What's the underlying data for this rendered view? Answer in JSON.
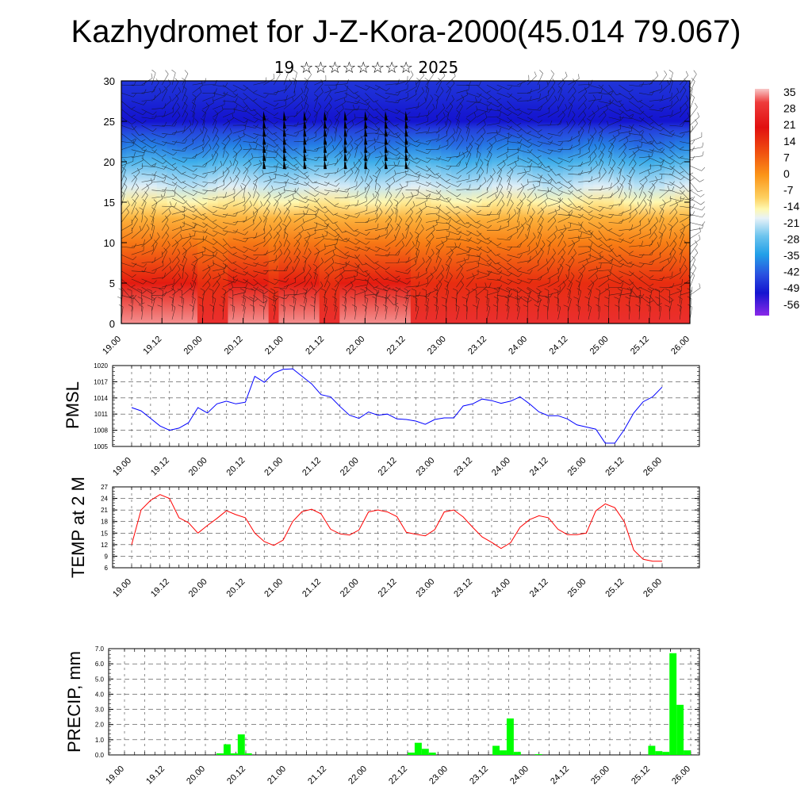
{
  "title": "Kazhydromet for J-Z-Kora-2000(45.014 79.067)",
  "subtitle": "19 ☆☆☆☆☆☆☆☆ 2025",
  "time_labels": [
    "19.00",
    "19.12",
    "20.00",
    "20.12",
    "21.00",
    "21.12",
    "22.00",
    "22.12",
    "23.00",
    "23.12",
    "24.00",
    "24.12",
    "25.00",
    "25.12",
    "26.00"
  ],
  "chart_data": [
    {
      "type": "heatmap",
      "name": "Temperature cross-section with wind barbs",
      "x_ticks": [
        "19.00",
        "19.12",
        "20.00",
        "20.12",
        "21.00",
        "21.12",
        "22.00",
        "22.12",
        "23.00",
        "23.12",
        "24.00",
        "24.12",
        "25.00",
        "25.12",
        "26.00"
      ],
      "y_ticks": [
        0,
        5,
        10,
        15,
        20,
        25,
        30
      ],
      "ylim": [
        0,
        30
      ],
      "colorbar_labels": [
        "35",
        "28",
        "21",
        "14",
        "7",
        "0",
        "-7",
        "-14",
        "-21",
        "-28",
        "-35",
        "-42",
        "-49",
        "-56"
      ],
      "colorbar_range": [
        -60,
        36
      ],
      "profile_levels": [
        0,
        5,
        10,
        13,
        15,
        17,
        20,
        22,
        24,
        25,
        26,
        28,
        30
      ],
      "profile_temps": [
        30,
        20,
        8,
        0,
        -10,
        -18,
        -30,
        -40,
        -48,
        -56,
        -55,
        -52,
        -50
      ],
      "warm_columns": [
        0.5,
        1.5,
        5.5,
        12.5,
        17.5,
        23.5,
        26.5
      ],
      "dense_barb_region": {
        "x_from": 13.5,
        "x_to": 28.5,
        "y_from": 19,
        "y_to": 26
      }
    },
    {
      "type": "line",
      "ylabel": "PMSL",
      "ylim": [
        1005,
        1020
      ],
      "y_ticks": [
        1005,
        1008,
        1011,
        1014,
        1017,
        1020
      ],
      "x_ticks": [
        "19.00",
        "19.12",
        "20.00",
        "20.12",
        "21.00",
        "21.12",
        "22.00",
        "22.12",
        "23.00",
        "23.12",
        "24.00",
        "24.12",
        "25.00",
        "25.12",
        "26.00"
      ],
      "color": "#0000ff",
      "values": [
        1012.2,
        1011.6,
        1010.2,
        1008.8,
        1008.0,
        1008.4,
        1009.4,
        1012.2,
        1011.2,
        1012.9,
        1013.4,
        1012.9,
        1013.2,
        1018.0,
        1016.9,
        1018.6,
        1019.3,
        1019.4,
        1018.0,
        1016.6,
        1014.6,
        1014.2,
        1012.4,
        1010.8,
        1010.2,
        1011.4,
        1010.8,
        1011.0,
        1010.1,
        1010.0,
        1009.7,
        1009.1,
        1010.0,
        1010.3,
        1010.3,
        1012.5,
        1012.9,
        1013.8,
        1013.5,
        1013.0,
        1013.4,
        1014.2,
        1012.9,
        1011.4,
        1010.7,
        1010.7,
        1010.1,
        1009.0,
        1008.6,
        1008.2,
        1005.6,
        1005.6,
        1008.1,
        1011.2,
        1013.3,
        1014.2,
        1016.0
      ]
    },
    {
      "type": "line",
      "ylabel": "TEMP at 2 M",
      "ylim": [
        6,
        27
      ],
      "y_ticks": [
        6,
        9,
        12,
        15,
        18,
        21,
        24,
        27
      ],
      "x_ticks": [
        "19.00",
        "19.12",
        "20.00",
        "20.12",
        "21.00",
        "21.12",
        "22.00",
        "22.12",
        "23.00",
        "23.12",
        "24.00",
        "24.12",
        "25.00",
        "25.12",
        "26.00"
      ],
      "color": "#ff0000",
      "values": [
        12,
        21,
        23.5,
        25,
        24,
        19,
        17.7,
        15,
        17,
        18.8,
        20.8,
        19.8,
        19,
        15,
        12.8,
        11.8,
        13.2,
        18,
        20.6,
        21.2,
        20,
        16,
        14.8,
        14.5,
        15.8,
        20.5,
        21,
        20.5,
        19.3,
        15.2,
        14.7,
        14.3,
        15.9,
        20.5,
        21,
        19.2,
        16.5,
        14,
        12.6,
        11,
        12.5,
        16.5,
        18.5,
        19.5,
        19,
        16,
        14.6,
        14.6,
        15,
        20.8,
        22.6,
        21.6,
        18,
        10.6,
        8.2,
        7.7,
        7.7
      ]
    },
    {
      "type": "bar",
      "ylabel": "PRECIP, mm",
      "ylim": [
        0,
        7
      ],
      "y_ticks": [
        "0.0",
        "1.0",
        "2.0",
        "3.0",
        "4.0",
        "5.0",
        "6.0",
        "7.0"
      ],
      "x_ticks": [
        "19.00",
        "19.12",
        "20.00",
        "20.12",
        "21.00",
        "21.12",
        "22.00",
        "22.12",
        "23.00",
        "23.12",
        "24.00",
        "24.12",
        "25.00",
        "25.12",
        "26.00"
      ],
      "color": "#00ff00",
      "values": [
        0,
        0,
        0,
        0,
        0,
        0,
        0,
        0,
        0,
        0,
        0,
        0,
        0,
        0.1,
        0.7,
        0.1,
        1.35,
        0.1,
        0,
        0,
        0,
        0,
        0,
        0,
        0,
        0,
        0,
        0,
        0,
        0,
        0,
        0,
        0,
        0,
        0,
        0,
        0,
        0,
        0,
        0,
        0.15,
        0.8,
        0.4,
        0.15,
        0,
        0,
        0,
        0,
        0,
        0,
        0,
        0,
        0.6,
        0.3,
        2.4,
        0.2,
        0,
        0,
        0.05,
        0,
        0,
        0,
        0,
        0,
        0,
        0,
        0,
        0,
        0,
        0,
        0,
        0,
        0,
        0,
        0.6,
        0.25,
        0.2,
        6.7,
        3.3,
        0.3
      ]
    }
  ]
}
